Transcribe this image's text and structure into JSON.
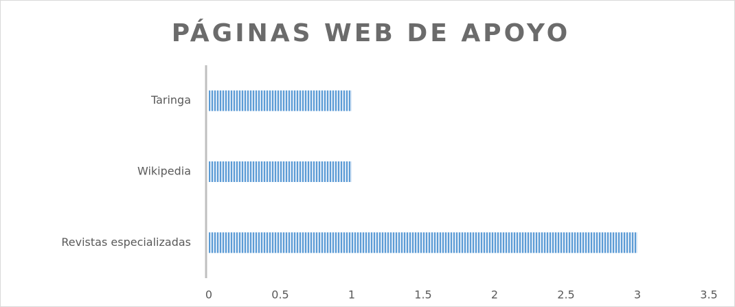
{
  "chart_data": {
    "type": "bar",
    "orientation": "horizontal",
    "title": "PÁGINAS WEB DE APOYO",
    "categories": [
      "Taringa",
      "Wikipedia",
      "Revistas especializadas"
    ],
    "values": [
      1,
      1,
      3
    ],
    "color": "#5b9bd5",
    "xlim": [
      0,
      3.5
    ],
    "xticks": [
      0,
      0.5,
      1,
      1.5,
      2,
      2.5,
      3,
      3.5
    ],
    "grid": false
  }
}
